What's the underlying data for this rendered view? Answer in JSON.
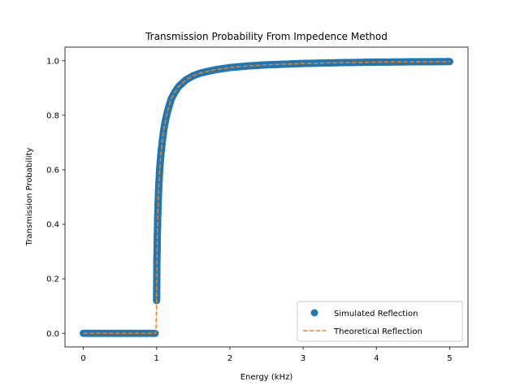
{
  "chart_data": {
    "type": "scatter",
    "title": "Transmission Probability From Impedence Method",
    "xlabel": "Energy (kHz)",
    "ylabel": "Transmission Probability",
    "xlim": [
      -0.25,
      5.25
    ],
    "ylim": [
      -0.05,
      1.05
    ],
    "xticks": [
      0,
      1,
      2,
      3,
      4,
      5
    ],
    "xtick_labels": [
      "0",
      "1",
      "2",
      "3",
      "4",
      "5"
    ],
    "yticks": [
      0.0,
      0.2,
      0.4,
      0.6,
      0.8,
      1.0
    ],
    "ytick_labels": [
      "0.0",
      "0.2",
      "0.4",
      "0.6",
      "0.8",
      "1.0"
    ],
    "grid": false,
    "legend_position": "lower-right",
    "series": [
      {
        "name": "Simulated Reflection",
        "style": "markers",
        "color": "#1f77b4",
        "x": [
          0.0,
          0.1,
          0.2,
          0.3,
          0.4,
          0.5,
          0.6,
          0.7,
          0.8,
          0.9,
          0.99,
          1.0,
          1.001,
          1.002,
          1.004,
          1.006,
          1.008,
          1.01,
          1.015,
          1.02,
          1.03,
          1.04,
          1.05,
          1.06,
          1.08,
          1.1,
          1.12,
          1.15,
          1.2,
          1.25,
          1.3,
          1.4,
          1.5,
          1.6,
          1.8,
          2.0,
          2.25,
          2.5,
          3.0,
          3.5,
          4.0,
          4.5,
          5.0
        ],
        "y": [
          0.0,
          0.0,
          0.0,
          0.0,
          0.0,
          0.0,
          0.0,
          0.0,
          0.0,
          0.0,
          0.0,
          0.12,
          0.165,
          0.2,
          0.25,
          0.29,
          0.325,
          0.36,
          0.42,
          0.47,
          0.54,
          0.59,
          0.63,
          0.66,
          0.71,
          0.75,
          0.78,
          0.815,
          0.86,
          0.885,
          0.905,
          0.93,
          0.945,
          0.955,
          0.967,
          0.975,
          0.981,
          0.985,
          0.99,
          0.993,
          0.995,
          0.996,
          0.997
        ]
      },
      {
        "name": "Theoretical Reflection",
        "style": "dashed",
        "color": "#ff7f0e",
        "x": [
          0.0,
          0.5,
          0.99,
          1.0,
          1.001,
          1.002,
          1.004,
          1.006,
          1.008,
          1.01,
          1.015,
          1.02,
          1.03,
          1.04,
          1.05,
          1.06,
          1.08,
          1.1,
          1.12,
          1.15,
          1.2,
          1.25,
          1.3,
          1.4,
          1.5,
          1.6,
          1.8,
          2.0,
          2.25,
          2.5,
          3.0,
          3.5,
          4.0,
          4.5,
          5.0
        ],
        "y": [
          0.0,
          0.0,
          0.0,
          0.12,
          0.165,
          0.2,
          0.25,
          0.29,
          0.325,
          0.36,
          0.42,
          0.47,
          0.54,
          0.59,
          0.63,
          0.66,
          0.71,
          0.75,
          0.78,
          0.815,
          0.86,
          0.885,
          0.905,
          0.93,
          0.945,
          0.955,
          0.967,
          0.975,
          0.981,
          0.985,
          0.99,
          0.993,
          0.995,
          0.996,
          0.997
        ]
      }
    ]
  }
}
